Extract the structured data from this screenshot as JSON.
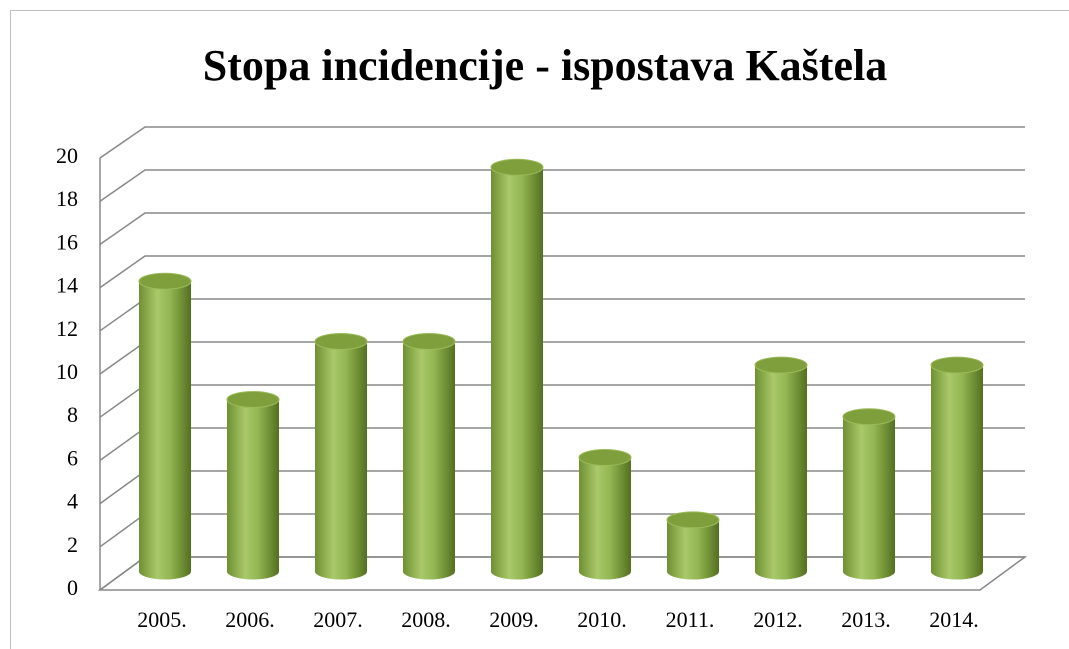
{
  "chart_data": {
    "type": "bar",
    "title": "Stopa incidencije - ispostava Kaštela",
    "categories": [
      "2005.",
      "2006.",
      "2007.",
      "2008.",
      "2009.",
      "2010.",
      "2011.",
      "2012.",
      "2013.",
      "2014."
    ],
    "values": [
      13.5,
      8.0,
      10.7,
      10.7,
      18.8,
      5.3,
      2.4,
      9.6,
      7.2,
      9.6
    ],
    "color": "#9bbb59",
    "ylim": [
      0,
      20
    ],
    "yticks": [
      0,
      2,
      4,
      6,
      8,
      10,
      12,
      14,
      16,
      18,
      20
    ],
    "grid": true
  }
}
